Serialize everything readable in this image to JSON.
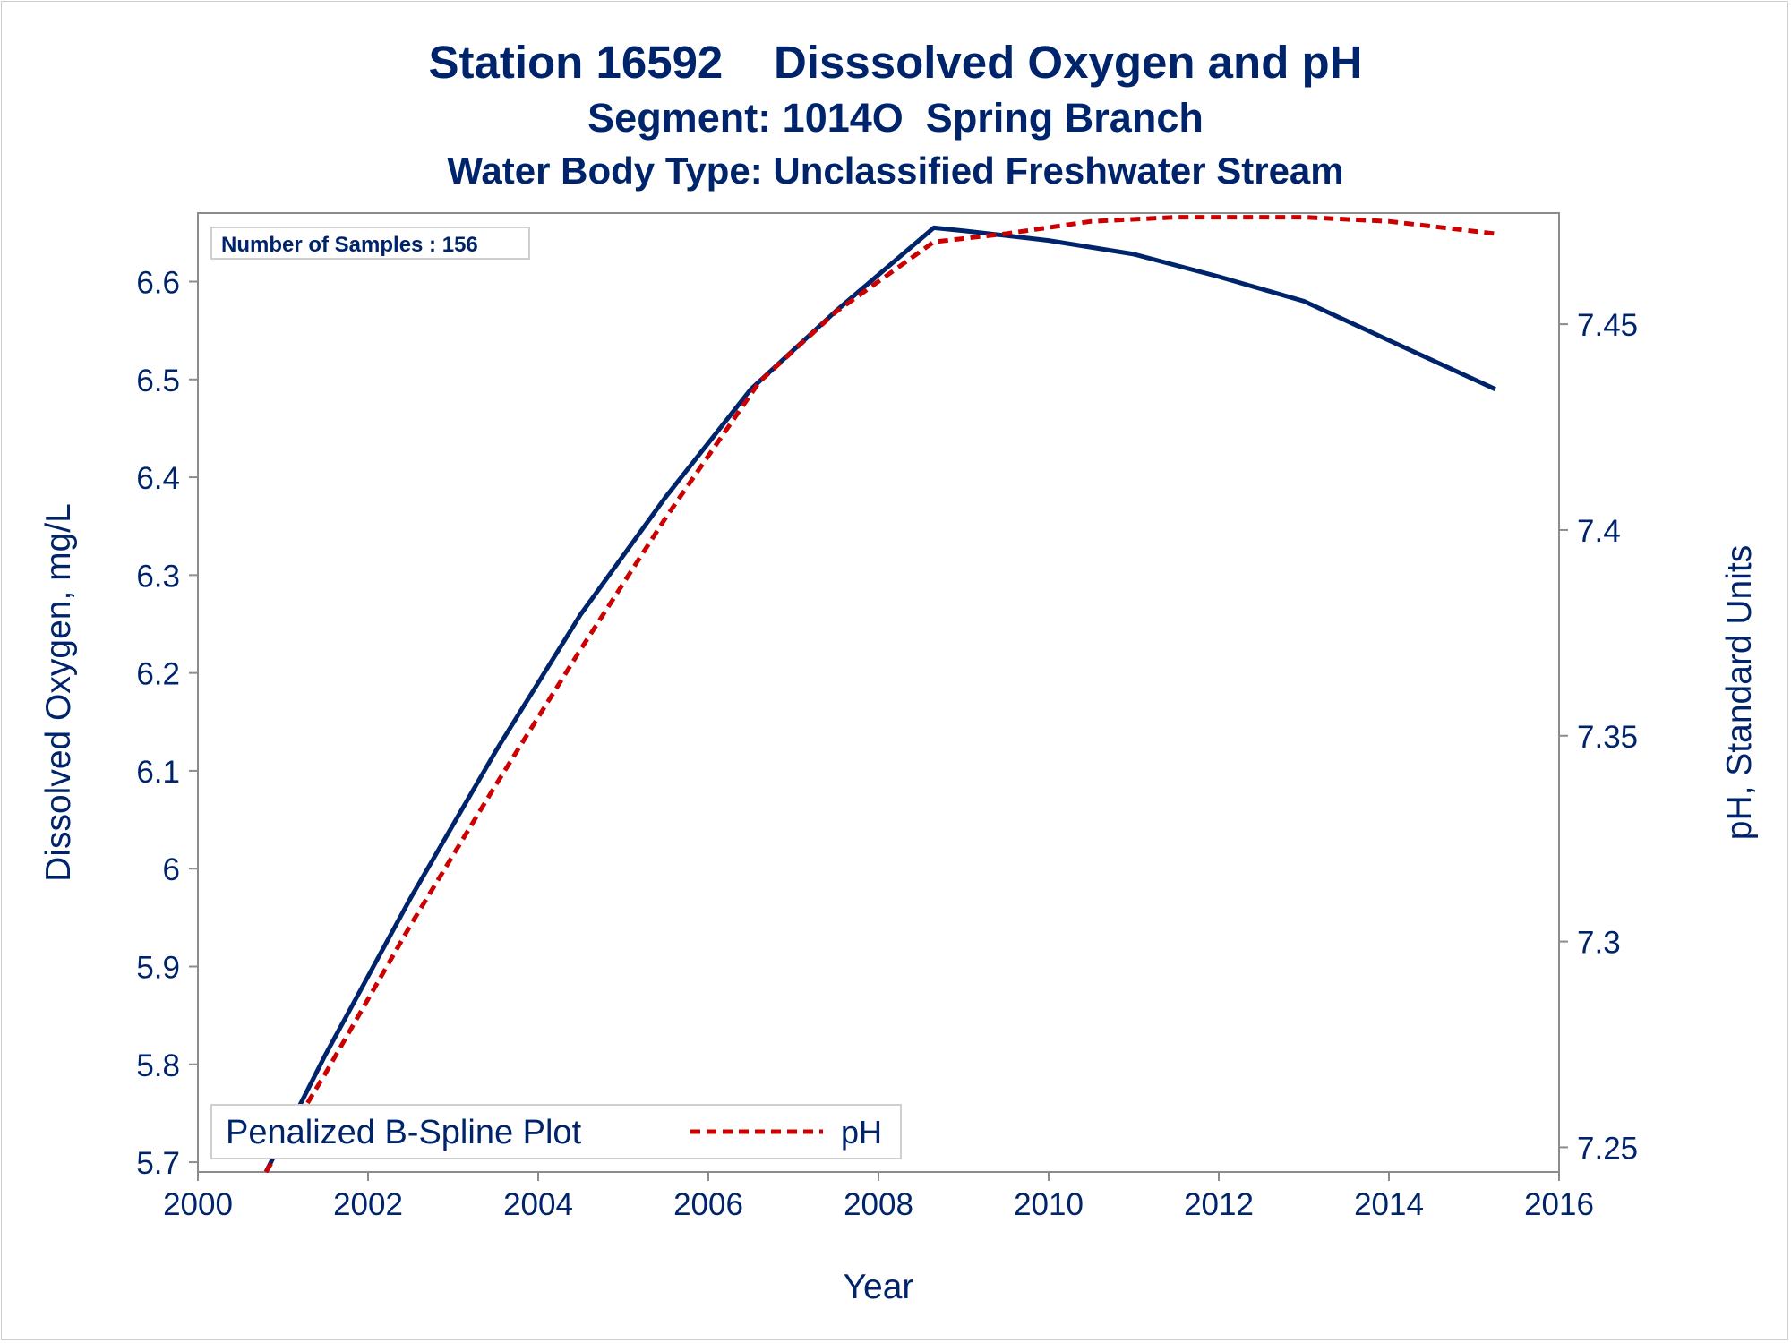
{
  "titles": {
    "line1": "Station 16592    Disssolved Oxygen and pH",
    "line2": "Segment: 1014O  Spring Branch",
    "line3": "Water Body Type: Unclassified Freshwater Stream"
  },
  "inset": {
    "text": "Number of Samples : 156"
  },
  "legend": {
    "title": "Penalized B-Spline Plot",
    "entries": [
      {
        "label": "pH"
      }
    ]
  },
  "colors": {
    "do_line": "#00246b",
    "ph_line": "#cc0000",
    "axis": "#8c8c8c",
    "text": "#00246b"
  },
  "chart_data": {
    "type": "line",
    "xlabel": "Year",
    "ylabel": "Dissolved Oxygen, mg/L",
    "y2label": "pH, Standard Units",
    "xlim": [
      2000,
      2016
    ],
    "ylim": [
      5.69,
      6.67
    ],
    "y2lim": [
      7.244,
      7.477
    ],
    "x_ticks": [
      2000,
      2002,
      2004,
      2006,
      2008,
      2010,
      2012,
      2014,
      2016
    ],
    "y_ticks": [
      5.7,
      5.8,
      5.9,
      6.0,
      6.1,
      6.2,
      6.3,
      6.4,
      6.5,
      6.6
    ],
    "y_tick_labels": [
      "5.7",
      "5.8",
      "5.9",
      "6",
      "6.1",
      "6.2",
      "6.3",
      "6.4",
      "6.5",
      "6.6"
    ],
    "y2_ticks": [
      7.25,
      7.3,
      7.35,
      7.4,
      7.45
    ],
    "y2_tick_labels": [
      "7.25",
      "7.3",
      "7.35",
      "7.4",
      "7.45"
    ],
    "grid": false,
    "legend_position": "bottom-left",
    "series": [
      {
        "axis": "left",
        "style": "solid",
        "x": [
          2000.8,
          2001.5,
          2002.5,
          2003.5,
          2004.5,
          2005.5,
          2006.5,
          2007.5,
          2008.65,
          2009.0,
          2010.0,
          2011.0,
          2012.0,
          2013.0,
          2014.0,
          2015.25
        ],
        "values": [
          5.69,
          5.81,
          5.97,
          6.12,
          6.26,
          6.38,
          6.49,
          6.57,
          6.655,
          6.652,
          6.642,
          6.628,
          6.605,
          6.58,
          6.54,
          6.49
        ]
      },
      {
        "name": "pH",
        "axis": "right",
        "style": "dashed",
        "x": [
          2000.8,
          2001.5,
          2002.5,
          2003.5,
          2004.5,
          2005.5,
          2006.6,
          2007.5,
          2008.65,
          2009.5,
          2010.5,
          2011.5,
          2012.5,
          2013.0,
          2014.0,
          2015.25
        ],
        "values": [
          7.244,
          7.268,
          7.304,
          7.338,
          7.371,
          7.403,
          7.436,
          7.453,
          7.47,
          7.472,
          7.475,
          7.476,
          7.476,
          7.476,
          7.475,
          7.472
        ]
      }
    ]
  }
}
